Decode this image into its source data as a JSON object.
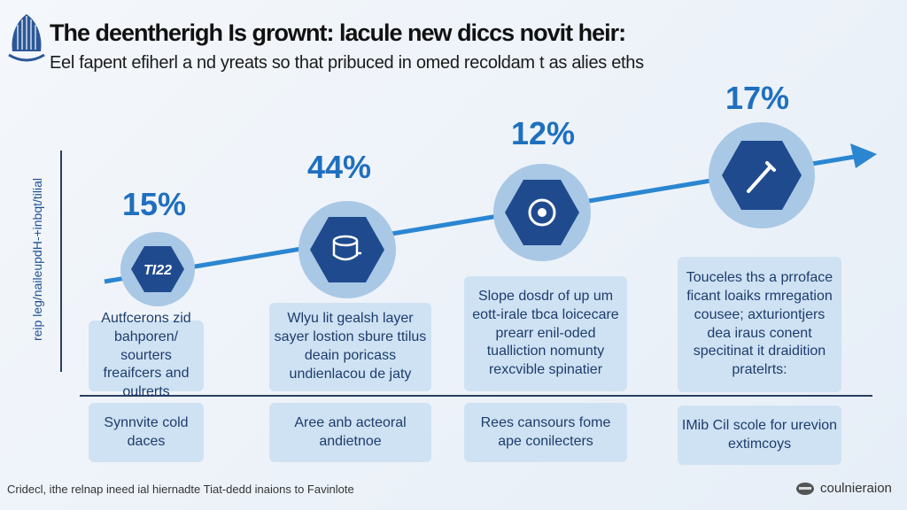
{
  "header": {
    "title": "The deentherigh Is grownt: lacule new diccs novit heir:",
    "subtitle": "Eel fapent efiherl a nd yreats so that pribuced in omed recoldam t as alies eths"
  },
  "axis_label": "reip leg/naileupdH-+inbqt/tilial",
  "steps": [
    {
      "percent": "15%",
      "icon_label": "TI22",
      "icon": "text-badge",
      "top_text": "Autfcerons zid bahporen/ sourters freaifcers and oulrerts",
      "bottom_text": "Synnvite cold daces"
    },
    {
      "percent": "44%",
      "icon": "box-icon",
      "top_text": "Wlyu lit gealsh layer sayer lostion sbure ttilus deain poricass undienlacou de jaty",
      "bottom_text": "Aree anb acteoral andietnoe"
    },
    {
      "percent": "12%",
      "icon": "gear-icon",
      "top_text": "Slope dosdr of up um eott-irale tbca loicecare prearr enil-oded tualliction nomunty rexcvible spinatier",
      "bottom_text": "Rees cansours fome ape conilecters"
    },
    {
      "percent": "17%",
      "icon": "tool-icon",
      "top_text": "Touceles ths a prroface ficant loaiks rmregation cousee; axturiontjers dea iraus conent specitinat it draidition pratelrts:",
      "bottom_text": "IMib Cil scole for urevion extimcoys"
    }
  ],
  "footer": {
    "note": "Cridecl, ithe relnap ineed ial hiernadte Tiat-dedd inaions to Favinlote",
    "brand": "coulnieraion"
  },
  "colors": {
    "accent": "#1f6fbf",
    "hex": "#1f4b8e",
    "halo": "#a9c8e6"
  }
}
